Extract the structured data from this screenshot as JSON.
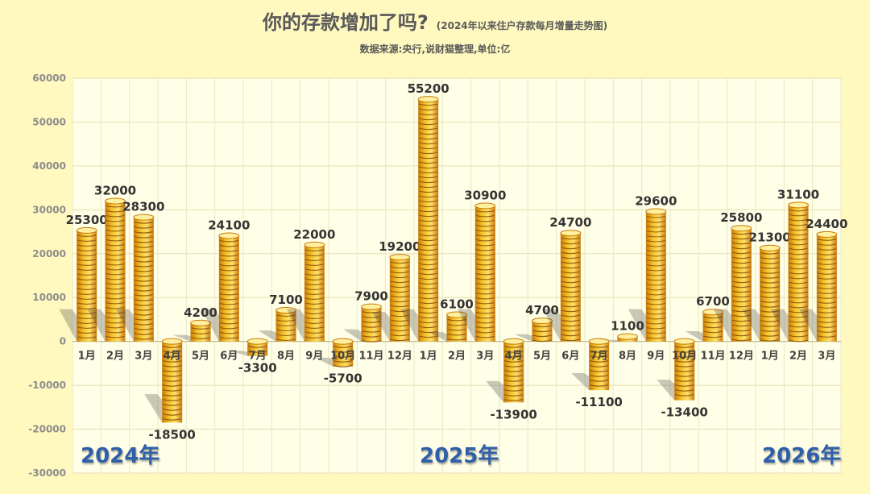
{
  "header": {
    "title": "你的存款增加了吗?",
    "subtitle": "(2024年以来住户存款每月增量走势图)",
    "source": "数据来源:央行,说财猫整理,单位:亿"
  },
  "colors": {
    "background": "#fff9bf",
    "plot_background": "#fffee6",
    "coin_gold": "#f3c42a",
    "coin_dark": "#c97a0b",
    "coin_stripe": "#8a4a05"
  },
  "chart_data": {
    "type": "bar",
    "style": "stacked gold coins",
    "categories": [
      "1月",
      "2月",
      "3月",
      "4月",
      "5月",
      "6月",
      "7月",
      "8月",
      "9月",
      "10月",
      "11月",
      "12月",
      "1月",
      "2月",
      "3月",
      "4月",
      "5月",
      "6月",
      "7月",
      "8月",
      "9月",
      "10月",
      "11月",
      "12月",
      "1月",
      "2月",
      "3月"
    ],
    "values": [
      25300,
      32000,
      28300,
      -18500,
      4200,
      24100,
      -3300,
      7100,
      22000,
      -5700,
      7900,
      19200,
      55200,
      6100,
      30900,
      -13900,
      4700,
      24700,
      -11100,
      1100,
      29600,
      -13400,
      6700,
      25800,
      21300,
      31100,
      24400
    ],
    "year_labels": [
      "2024年",
      "2025年",
      "2026年"
    ],
    "ylim": [
      -30000,
      60000
    ],
    "yticks": [
      -30000,
      -20000,
      -10000,
      0,
      10000,
      20000,
      30000,
      40000,
      50000,
      60000
    ],
    "grid": true,
    "legend": "none"
  }
}
